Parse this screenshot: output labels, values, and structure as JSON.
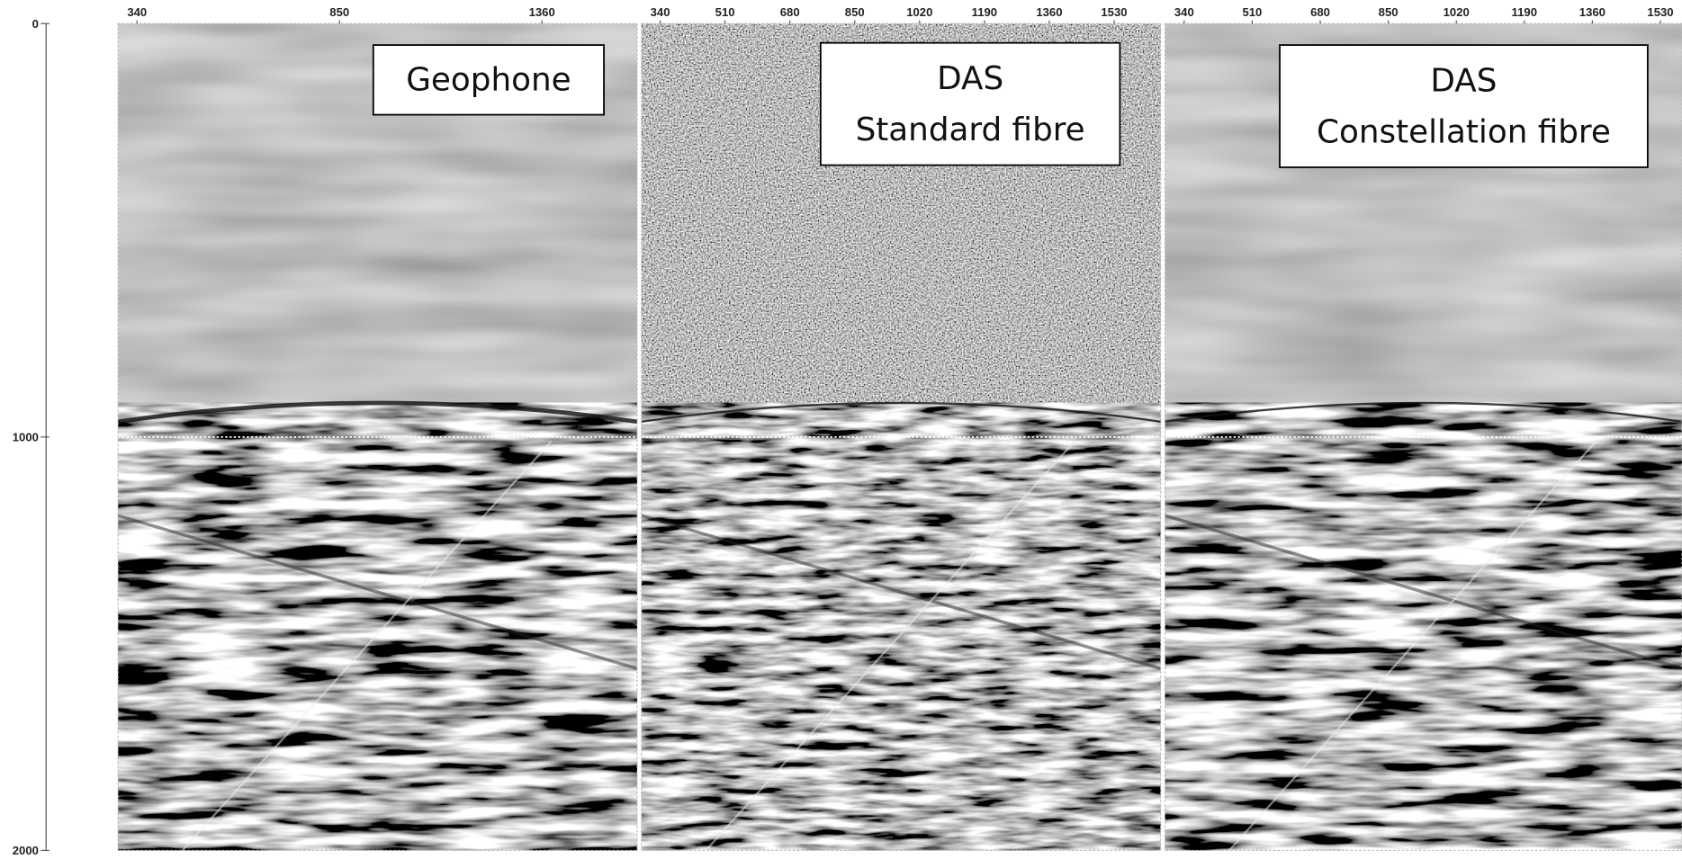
{
  "y_axis": {
    "ticks": [
      0,
      1000,
      2000
    ],
    "ylim": [
      0,
      2000
    ]
  },
  "panels": [
    {
      "label_lines": [
        "Geophone"
      ],
      "x_ticks": [
        340,
        850,
        1360
      ],
      "xlim": [
        292,
        1600
      ]
    },
    {
      "label_lines": [
        "DAS",
        "Standard fibre"
      ],
      "x_ticks": [
        340,
        510,
        680,
        850,
        1020,
        1190,
        1360,
        1530
      ],
      "xlim": [
        291,
        1652
      ]
    },
    {
      "label_lines": [
        "DAS",
        "Constellation fibre"
      ],
      "x_ticks": [
        340,
        510,
        680,
        850,
        1020,
        1190,
        1360,
        1530
      ],
      "xlim": [
        292,
        1584
      ]
    }
  ]
}
